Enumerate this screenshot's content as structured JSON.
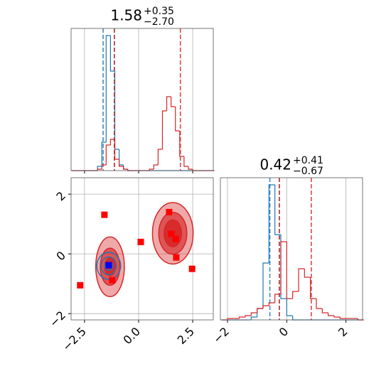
{
  "chart_data": [
    {
      "type": "histogram",
      "title": {
        "value": "1.58",
        "plus": "+0.35",
        "minus": "−2.70"
      },
      "bins": [
        -3.1,
        -2.9,
        -2.7,
        -2.5,
        -2.3,
        -2.1,
        -1.9,
        -1.7,
        -1.5,
        -1.3,
        -1.1,
        -0.9,
        -0.7,
        -0.5,
        -0.3,
        -0.1,
        0.1,
        0.3,
        0.5,
        0.7,
        0.9,
        1.1,
        1.3,
        1.5,
        1.7,
        1.9,
        2.1,
        2.3,
        2.5,
        2.7,
        2.9,
        3.1,
        3.3,
        3.5
      ],
      "series": [
        {
          "color": "#1f77b4",
          "values": [
            0,
            0,
            0,
            0,
            0,
            0,
            3,
            20,
            95,
            70,
            15,
            4,
            1,
            0,
            0,
            0,
            0,
            0,
            0,
            0,
            0,
            0,
            0,
            0,
            0,
            0,
            0,
            0,
            0,
            0,
            0,
            0,
            0
          ],
          "quantiles": [
            -1.64,
            -1.12
          ]
        },
        {
          "color": "#d62728",
          "values": [
            0,
            0,
            0,
            0,
            0,
            0,
            1,
            4,
            18,
            22,
            8,
            3,
            1,
            0,
            0,
            0,
            0,
            0,
            1,
            4,
            15,
            42,
            52,
            45,
            28,
            10,
            3,
            1,
            0,
            0,
            0,
            0,
            0
          ],
          "quantiles": [
            -1.12,
            1.93
          ]
        }
      ],
      "xlim": [
        -3.12,
        3.45
      ],
      "ylim": [
        0,
        100
      ],
      "xticks": [
        {
          "value": -2.5,
          "label": "−2.5"
        },
        {
          "value": 0,
          "label": "0.0"
        },
        {
          "value": 2.5,
          "label": "2.5"
        }
      ],
      "grid": true,
      "xtick_labels": false
    },
    {
      "type": "contour",
      "xlim": [
        -3.12,
        3.45
      ],
      "ylim": [
        -2.21,
        2.55
      ],
      "xticks": [
        {
          "value": -2.5,
          "label": "−2.5"
        },
        {
          "value": 0,
          "label": "0.0"
        },
        {
          "value": 2.5,
          "label": "2.5"
        }
      ],
      "yticks": [
        {
          "value": -2,
          "label": "−2"
        },
        0,
        2
      ],
      "grid": true,
      "contours": [
        {
          "color": "#d62728",
          "filled": true,
          "levels": [
            {
              "x": -1.32,
              "y": -0.43,
              "rx": 0.66,
              "ry": 1.0
            },
            {
              "x": -1.32,
              "y": -0.43,
              "rx": 0.45,
              "ry": 0.62
            },
            {
              "x": -1.32,
              "y": -0.43,
              "rx": 0.25,
              "ry": 0.3
            },
            {
              "x": 1.58,
              "y": 0.69,
              "rx": 0.94,
              "ry": 1.03
            },
            {
              "x": 1.58,
              "y": 0.69,
              "rx": 0.65,
              "ry": 0.7
            },
            {
              "x": 1.58,
              "y": 0.69,
              "rx": 0.4,
              "ry": 0.45
            }
          ]
        },
        {
          "color": "#1f77b4",
          "filled": false,
          "levels": [
            {
              "x": -1.38,
              "y": -0.4,
              "rx": 0.55,
              "ry": 0.45
            },
            {
              "x": -1.38,
              "y": -0.4,
              "rx": 0.35,
              "ry": 0.3
            },
            {
              "x": -1.38,
              "y": -0.4,
              "rx": 0.18,
              "ry": 0.15
            }
          ]
        }
      ],
      "points": [
        {
          "color": "#ff0000",
          "x": [
            -1.58,
            1.41,
            1.51,
            1.71,
            1.74,
            2.47,
            0.1,
            -2.7,
            -1.22,
            -1.38
          ],
          "y": [
            1.31,
            1.4,
            0.67,
            0.5,
            -0.12,
            -0.5,
            0.4,
            -1.05,
            -0.88,
            -0.36
          ]
        },
        {
          "color": "#0000ff",
          "x": [
            -1.38
          ],
          "y": [
            -0.38
          ]
        }
      ]
    },
    {
      "type": "histogram",
      "title": {
        "value": "0.42",
        "plus": "+0.41",
        "minus": "−0.67"
      },
      "bins": [
        -2.2,
        -2.0,
        -1.8,
        -1.6,
        -1.4,
        -1.2,
        -1.0,
        -0.8,
        -0.6,
        -0.4,
        -0.2,
        0.0,
        0.2,
        0.4,
        0.6,
        0.8,
        1.0,
        1.2,
        1.4,
        1.6,
        1.8,
        2.0,
        2.2,
        2.4,
        2.6
      ],
      "series": [
        {
          "color": "#1f77b4",
          "values": [
            0,
            0,
            0,
            0,
            0,
            2,
            8,
            40,
            95,
            60,
            15,
            3,
            0,
            0,
            0,
            0,
            0,
            0,
            0,
            0,
            0,
            0,
            0,
            0
          ],
          "quantiles": [
            -0.57,
            -0.25
          ]
        },
        {
          "color": "#d62728",
          "values": [
            0,
            1,
            1,
            2,
            3,
            5,
            8,
            10,
            12,
            18,
            55,
            15,
            20,
            36,
            30,
            15,
            8,
            5,
            3,
            2,
            1,
            1,
            1,
            0
          ],
          "quantiles": [
            -0.25,
            0.83
          ]
        }
      ],
      "xlim": [
        -2.24,
        2.56
      ],
      "ylim": [
        0,
        100
      ],
      "xticks": [
        {
          "value": -2,
          "label": "−2"
        },
        0,
        2
      ],
      "grid": true,
      "xtick_labels": true
    }
  ]
}
